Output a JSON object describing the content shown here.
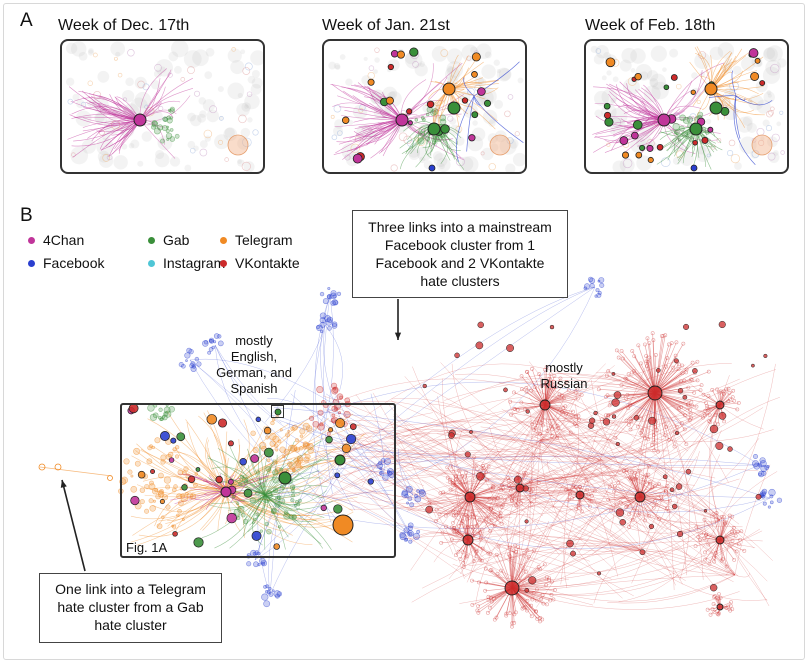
{
  "panels": {
    "a_label": "A",
    "b_label": "B"
  },
  "weeks": [
    {
      "title": "Week of Dec. 17th",
      "stage": 0
    },
    {
      "title": "Week of Jan. 21st",
      "stage": 1
    },
    {
      "title": "Week of Feb. 18th",
      "stage": 2
    }
  ],
  "legend": [
    {
      "label": "4Chan",
      "color": "#c0359a"
    },
    {
      "label": "Gab",
      "color": "#3a8f3a"
    },
    {
      "label": "Telegram",
      "color": "#f08a24"
    },
    {
      "label": "Facebook",
      "color": "#2a3fcf"
    },
    {
      "label": "Instagram",
      "color": "#4fc6d6"
    },
    {
      "label": "VKontakte",
      "color": "#cc2b2b"
    }
  ],
  "callouts": {
    "top": "Three links into a mainstream Facebook cluster from 1 Facebook and 2 VKontakte hate clusters",
    "bottom": "One link into a Telegram hate cluster from a Gab hate cluster"
  },
  "annotations": {
    "english": "mostly English, German, and Spanish",
    "russian": "mostly Russian",
    "fig_ref": "Fig. 1A"
  },
  "colors": {
    "chan": "#c0359a",
    "gab": "#3a8f3a",
    "telegram": "#f08a24",
    "facebook": "#2a3fcf",
    "instagram": "#4fc6d6",
    "vk": "#cc2b2b"
  }
}
